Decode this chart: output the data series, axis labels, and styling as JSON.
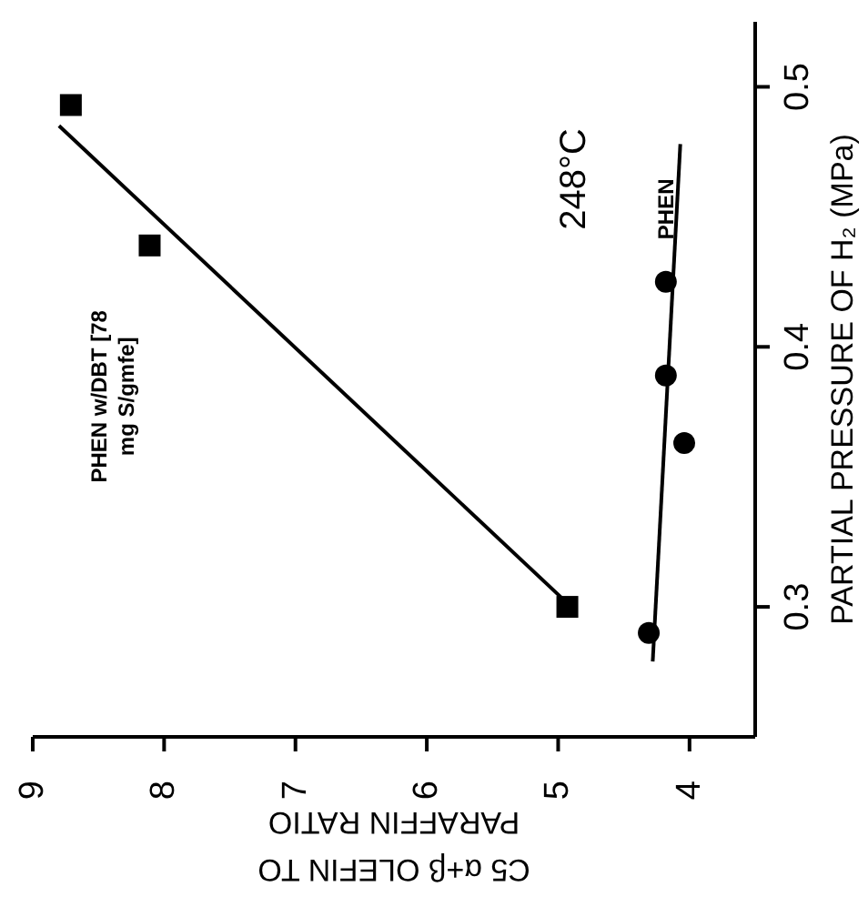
{
  "chart_data": {
    "type": "scatter",
    "xlabel": "C5 α+β OLEFIN TO PARAFFIN RATIO",
    "ylabel": "PARTIAL PRESSURE OF H₂ (MPa)",
    "xlim": [
      9,
      3.5
    ],
    "xticks": [
      9,
      8,
      7,
      6,
      5,
      4
    ],
    "ylim": [
      0.25,
      0.525
    ],
    "yticks": [
      0.3,
      0.4,
      0.5
    ],
    "grid": false,
    "legend": false,
    "annotations": [
      "248°C"
    ],
    "series": [
      {
        "name": "PHEN w/DBT [78 mg S/gmfe]",
        "color": "#000000",
        "marker": "square",
        "x": [
          8.71,
          8.11,
          4.93
        ],
        "values": [
          0.493,
          0.439,
          0.3
        ]
      },
      {
        "type": "line",
        "color": "#000000",
        "marker": "none",
        "x": [
          8.8,
          4.9
        ],
        "values": [
          0.485,
          0.3
        ]
      },
      {
        "name": "PHEN",
        "color": "#000000",
        "marker": "circle",
        "x": [
          4.18,
          4.18,
          4.04,
          4.31
        ],
        "values": [
          0.425,
          0.389,
          0.363,
          0.29
        ]
      },
      {
        "type": "line",
        "color": "#000000",
        "marker": "none",
        "x": [
          4.28,
          4.07
        ],
        "values": [
          0.279,
          0.478
        ]
      }
    ]
  }
}
